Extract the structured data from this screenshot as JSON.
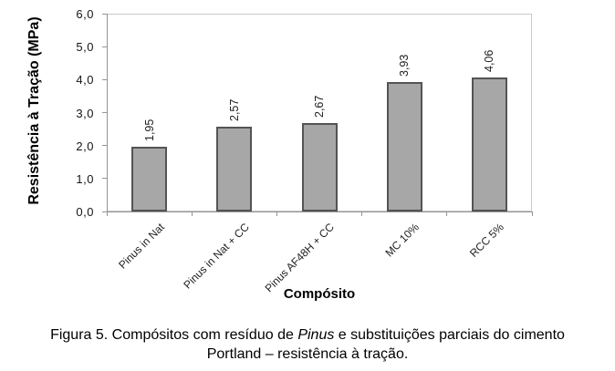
{
  "chart_data": {
    "type": "bar",
    "categories": [
      "Pinus in Nat",
      "Pinus in Nat + CC",
      "Pinus AF48H + CC",
      "MC 10%",
      "RCC 5%"
    ],
    "values": [
      1.95,
      2.57,
      2.67,
      3.93,
      4.06
    ],
    "value_labels": [
      "1,95",
      "2,57",
      "2,67",
      "3,93",
      "4,06"
    ],
    "xlabel": "Compósito",
    "ylabel": "Resistência à Tração (MPa)",
    "ylim": [
      0,
      6
    ],
    "ytick_labels": [
      "0,0",
      "1,0",
      "2,0",
      "3,0",
      "4,0",
      "5,0",
      "6,0"
    ],
    "grid": false,
    "legend": "none",
    "bar_fill": "#a7a7a7",
    "bar_border": "#545454",
    "axis_color": "#949494",
    "plot_border_color": "#c9c9c9"
  },
  "caption": {
    "line1_prefix": "Figura 5. Compósitos com resíduo de ",
    "line1_italic": "Pinus",
    "line1_suffix": " e substituições parciais do cimento",
    "line2": "Portland – resistência à tração."
  }
}
